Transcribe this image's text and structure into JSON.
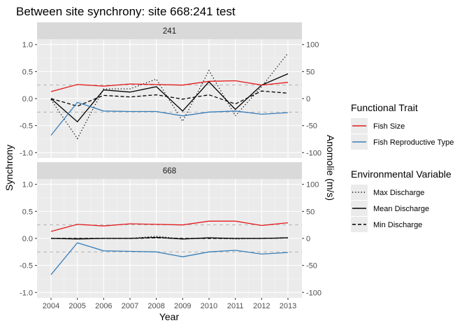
{
  "chart_data": {
    "type": "line",
    "title": "Between site synchrony: site 668:241 test",
    "xlabel": "Year",
    "ylabel": "Synchrony",
    "y2label": "Anomolie (m/s)",
    "x": [
      2004,
      2005,
      2006,
      2007,
      2008,
      2009,
      2010,
      2011,
      2012,
      2013
    ],
    "ylim": [
      -1.1,
      1.1
    ],
    "y_ticks": [
      -1.0,
      -0.5,
      0.0,
      0.5,
      1.0
    ],
    "y_tick_labels": [
      "-1.0",
      "-0.5",
      "0.0",
      "0.5",
      "1.0"
    ],
    "y2lim": [
      -110,
      110
    ],
    "y2_ticks": [
      -100,
      -50,
      0,
      50,
      100
    ],
    "y2_tick_labels": [
      "-100",
      "-50",
      "0",
      "50",
      "100"
    ],
    "x_tick_labels": [
      "2004",
      "2005",
      "2006",
      "2007",
      "2008",
      "2009",
      "2010",
      "2011",
      "2012",
      "2013"
    ],
    "reference_lines": [
      0.25,
      -0.25
    ],
    "grid": true,
    "legend_position": "right",
    "legend": {
      "trait_title": "Functional Trait",
      "trait_items": [
        {
          "label": "Fish Size",
          "color": "#e41a1c"
        },
        {
          "label": "Fish Reproductive Type",
          "color": "#377eb8"
        }
      ],
      "env_title": "Environmental Variable",
      "env_items": [
        {
          "label": "Max Discharge",
          "dash": "dotted"
        },
        {
          "label": "Mean Discharge",
          "dash": "solid"
        },
        {
          "label": "Min Discharge",
          "dash": "dashed"
        }
      ]
    },
    "panels": [
      {
        "strip": "241",
        "trait_series": [
          {
            "name": "Fish Size",
            "color": "#e41a1c",
            "values": [
              0.13,
              0.26,
              0.23,
              0.27,
              0.26,
              0.25,
              0.32,
              0.33,
              0.25,
              0.3
            ]
          },
          {
            "name": "Fish Reproductive Type",
            "color": "#377eb8",
            "values": [
              -0.68,
              -0.07,
              -0.23,
              -0.24,
              -0.24,
              -0.32,
              -0.25,
              -0.23,
              -0.29,
              -0.26
            ]
          }
        ],
        "env_series": [
          {
            "name": "Max Discharge",
            "dash": "dotted",
            "values": [
              -2,
              -74,
              18,
              18,
              36,
              -42,
              52,
              -32,
              22,
              84
            ]
          },
          {
            "name": "Mean Discharge",
            "dash": "solid",
            "values": [
              0,
              -43,
              16,
              12,
              22,
              -23,
              31,
              -20,
              25,
              46
            ]
          },
          {
            "name": "Min Discharge",
            "dash": "dashed",
            "values": [
              0,
              -14,
              6,
              3,
              7,
              -1,
              7,
              -10,
              14,
              10
            ]
          }
        ]
      },
      {
        "strip": "668",
        "trait_series": [
          {
            "name": "Fish Size",
            "color": "#e41a1c",
            "values": [
              0.13,
              0.26,
              0.23,
              0.27,
              0.26,
              0.25,
              0.32,
              0.32,
              0.24,
              0.29
            ]
          },
          {
            "name": "Fish Reproductive Type",
            "color": "#377eb8",
            "values": [
              -0.67,
              -0.08,
              -0.23,
              -0.24,
              -0.25,
              -0.34,
              -0.25,
              -0.22,
              -0.29,
              -0.26
            ]
          }
        ],
        "env_series": [
          {
            "name": "Max Discharge",
            "dash": "dotted",
            "values": [
              0,
              0,
              0,
              0,
              4,
              -1,
              1,
              -1,
              0,
              1
            ]
          },
          {
            "name": "Mean Discharge",
            "dash": "solid",
            "values": [
              0,
              -1,
              0,
              0,
              2,
              -1,
              1,
              0,
              0,
              1
            ]
          },
          {
            "name": "Min Discharge",
            "dash": "dashed",
            "values": [
              0,
              0,
              0,
              0,
              1,
              0,
              0,
              0,
              0,
              1
            ]
          }
        ]
      }
    ]
  }
}
